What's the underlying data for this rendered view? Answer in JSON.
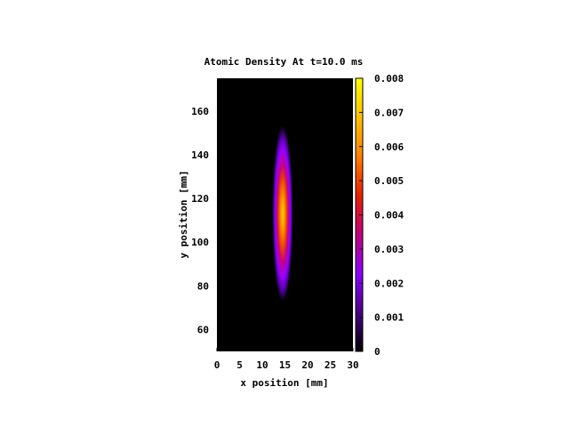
{
  "chart_data": {
    "type": "heatmap",
    "title": "Atomic Density At t=10.0 ms",
    "xlabel": "x position [mm]",
    "ylabel": "y position [mm]",
    "xlim": [
      0,
      30
    ],
    "ylim": [
      50,
      175
    ],
    "xticks": [
      0,
      5,
      10,
      15,
      20,
      25,
      30
    ],
    "yticks": [
      60,
      80,
      100,
      120,
      140,
      160
    ],
    "colorbar": {
      "range": [
        0,
        0.008
      ],
      "ticks": [
        "0",
        "0.001",
        "0.002",
        "0.003",
        "0.004",
        "0.005",
        "0.006",
        "0.007",
        "0.008"
      ],
      "palette": [
        "#000000",
        "#4b0082",
        "#8a00ff",
        "#c2007a",
        "#e82000",
        "#ff8000",
        "#ffc000",
        "#ffff00"
      ]
    },
    "distribution": {
      "shape": "gaussian",
      "center_x": 14.5,
      "center_y": 113,
      "sigma_x": 0.9,
      "sigma_y": 15.5,
      "peak": 0.0063,
      "background": "#000000"
    }
  }
}
